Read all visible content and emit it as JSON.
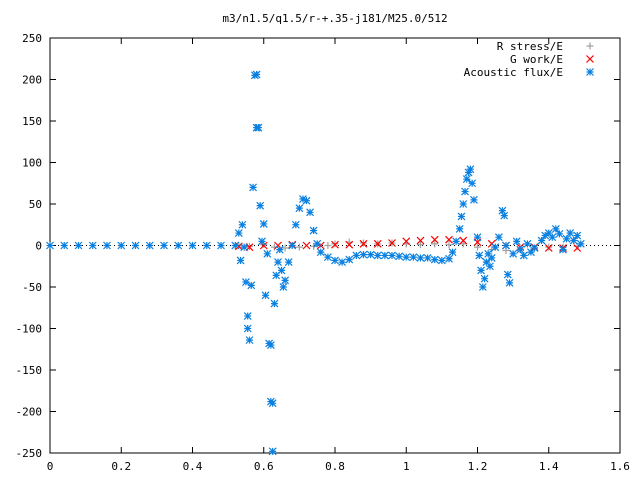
{
  "chart_data": {
    "type": "scatter",
    "title": "m3/n1.5/q1.5/r-+.35-j181/M25.0/512",
    "xlabel": "",
    "ylabel": "",
    "xlim": [
      0,
      1.6
    ],
    "ylim": [
      -250,
      250
    ],
    "x_ticks": [
      0,
      0.2,
      0.4,
      0.6,
      0.8,
      1,
      1.2,
      1.4,
      1.6
    ],
    "x_tick_labels": [
      "0",
      "0.2",
      "0.4",
      "0.6",
      "0.8",
      "1",
      "1.2",
      "1.4",
      "1.6"
    ],
    "y_ticks": [
      -250,
      -200,
      -150,
      -100,
      -50,
      0,
      50,
      100,
      150,
      200,
      250
    ],
    "y_tick_labels": [
      "-250",
      "-200",
      "-150",
      "-100",
      "-50",
      "0",
      "50",
      "100",
      "150",
      "200",
      "250"
    ],
    "grid": false,
    "legend_position": "top-right",
    "series": [
      {
        "name": "R stress/E",
        "marker": "plus",
        "color": "#a0a0a0",
        "points": [
          [
            0.53,
            0
          ],
          [
            0.56,
            -1
          ],
          [
            0.6,
            1
          ],
          [
            0.63,
            -2
          ],
          [
            0.66,
            -3
          ],
          [
            0.7,
            -2
          ],
          [
            0.74,
            -1
          ],
          [
            0.78,
            0
          ],
          [
            0.8,
            2
          ],
          [
            0.84,
            4
          ],
          [
            0.88,
            3
          ],
          [
            0.92,
            2
          ],
          [
            0.96,
            3
          ],
          [
            1.0,
            2
          ],
          [
            1.04,
            1
          ],
          [
            1.08,
            2
          ],
          [
            1.12,
            1
          ],
          [
            1.16,
            2
          ],
          [
            1.2,
            -2
          ],
          [
            1.24,
            -5
          ],
          [
            1.28,
            -6
          ],
          [
            1.32,
            -4
          ],
          [
            1.36,
            -3
          ],
          [
            1.4,
            -2
          ],
          [
            1.44,
            -2
          ],
          [
            1.48,
            -1
          ]
        ]
      },
      {
        "name": "G work/E",
        "marker": "cross",
        "color": "#ff0000",
        "points": [
          [
            0.53,
            -1
          ],
          [
            0.56,
            -2
          ],
          [
            0.6,
            0
          ],
          [
            0.64,
            0
          ],
          [
            0.68,
            1
          ],
          [
            0.72,
            0
          ],
          [
            0.76,
            0
          ],
          [
            0.8,
            1
          ],
          [
            0.84,
            1
          ],
          [
            0.88,
            2
          ],
          [
            0.92,
            2
          ],
          [
            0.96,
            3
          ],
          [
            1.0,
            5
          ],
          [
            1.04,
            6
          ],
          [
            1.08,
            7
          ],
          [
            1.12,
            7
          ],
          [
            1.16,
            6
          ],
          [
            1.2,
            4
          ],
          [
            1.24,
            2
          ],
          [
            1.28,
            0
          ],
          [
            1.32,
            -2
          ],
          [
            1.36,
            -2
          ],
          [
            1.4,
            -3
          ],
          [
            1.44,
            -3
          ],
          [
            1.48,
            -3
          ]
        ]
      },
      {
        "name": "Acoustic flux/E",
        "marker": "star",
        "color": "#0a80e0",
        "points": [
          [
            0.0,
            0
          ],
          [
            0.04,
            0
          ],
          [
            0.08,
            0
          ],
          [
            0.12,
            0
          ],
          [
            0.16,
            0
          ],
          [
            0.2,
            0
          ],
          [
            0.24,
            0
          ],
          [
            0.28,
            0
          ],
          [
            0.32,
            0
          ],
          [
            0.36,
            0
          ],
          [
            0.4,
            0
          ],
          [
            0.44,
            0
          ],
          [
            0.48,
            0
          ],
          [
            0.52,
            0
          ],
          [
            0.53,
            15
          ],
          [
            0.535,
            -18
          ],
          [
            0.54,
            25
          ],
          [
            0.545,
            -2
          ],
          [
            0.55,
            -44
          ],
          [
            0.555,
            -85
          ],
          [
            0.555,
            -100
          ],
          [
            0.56,
            -114
          ],
          [
            0.565,
            -48
          ],
          [
            0.57,
            70
          ],
          [
            0.575,
            205
          ],
          [
            0.58,
            206
          ],
          [
            0.58,
            142
          ],
          [
            0.585,
            142
          ],
          [
            0.59,
            48
          ],
          [
            0.595,
            5
          ],
          [
            0.6,
            26
          ],
          [
            0.605,
            -60
          ],
          [
            0.61,
            -10
          ],
          [
            0.615,
            -118
          ],
          [
            0.62,
            -120
          ],
          [
            0.62,
            -188
          ],
          [
            0.625,
            -190
          ],
          [
            0.625,
            -248
          ],
          [
            0.63,
            -70
          ],
          [
            0.635,
            -36
          ],
          [
            0.64,
            -20
          ],
          [
            0.645,
            -5
          ],
          [
            0.65,
            -30
          ],
          [
            0.655,
            -50
          ],
          [
            0.66,
            -42
          ],
          [
            0.67,
            -20
          ],
          [
            0.68,
            0
          ],
          [
            0.69,
            25
          ],
          [
            0.7,
            45
          ],
          [
            0.71,
            56
          ],
          [
            0.72,
            54
          ],
          [
            0.73,
            40
          ],
          [
            0.74,
            18
          ],
          [
            0.75,
            2
          ],
          [
            0.76,
            -8
          ],
          [
            0.78,
            -14
          ],
          [
            0.8,
            -18
          ],
          [
            0.82,
            -20
          ],
          [
            0.84,
            -17
          ],
          [
            0.86,
            -12
          ],
          [
            0.88,
            -11
          ],
          [
            0.9,
            -11
          ],
          [
            0.92,
            -12
          ],
          [
            0.94,
            -12
          ],
          [
            0.96,
            -12
          ],
          [
            0.98,
            -13
          ],
          [
            1.0,
            -14
          ],
          [
            1.02,
            -14
          ],
          [
            1.04,
            -15
          ],
          [
            1.06,
            -15
          ],
          [
            1.08,
            -17
          ],
          [
            1.1,
            -18
          ],
          [
            1.12,
            -16
          ],
          [
            1.13,
            -8
          ],
          [
            1.14,
            5
          ],
          [
            1.15,
            20
          ],
          [
            1.155,
            35
          ],
          [
            1.16,
            50
          ],
          [
            1.165,
            65
          ],
          [
            1.17,
            80
          ],
          [
            1.175,
            88
          ],
          [
            1.18,
            92
          ],
          [
            1.185,
            75
          ],
          [
            1.19,
            55
          ],
          [
            1.2,
            10
          ],
          [
            1.205,
            -12
          ],
          [
            1.21,
            -30
          ],
          [
            1.215,
            -50
          ],
          [
            1.22,
            -40
          ],
          [
            1.225,
            -20
          ],
          [
            1.23,
            -10
          ],
          [
            1.235,
            -25
          ],
          [
            1.24,
            -15
          ],
          [
            1.25,
            -2
          ],
          [
            1.26,
            10
          ],
          [
            1.27,
            42
          ],
          [
            1.275,
            36
          ],
          [
            1.28,
            0
          ],
          [
            1.285,
            -35
          ],
          [
            1.29,
            -45
          ],
          [
            1.3,
            -10
          ],
          [
            1.31,
            5
          ],
          [
            1.32,
            -5
          ],
          [
            1.33,
            -12
          ],
          [
            1.34,
            2
          ],
          [
            1.35,
            -8
          ],
          [
            1.36,
            -3
          ],
          [
            1.38,
            6
          ],
          [
            1.39,
            12
          ],
          [
            1.4,
            15
          ],
          [
            1.41,
            10
          ],
          [
            1.42,
            20
          ],
          [
            1.43,
            14
          ],
          [
            1.44,
            -5
          ],
          [
            1.45,
            8
          ],
          [
            1.46,
            15
          ],
          [
            1.47,
            6
          ],
          [
            1.48,
            12
          ],
          [
            1.49,
            2
          ]
        ]
      }
    ]
  }
}
